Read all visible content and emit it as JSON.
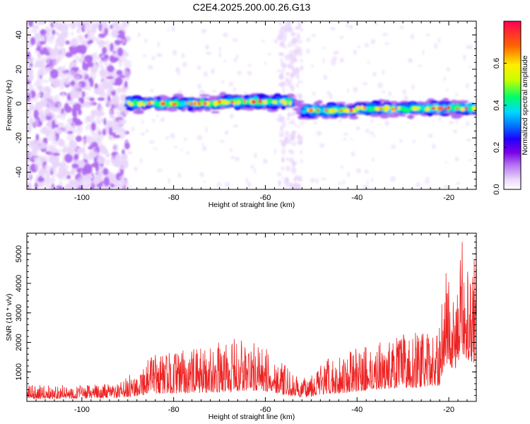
{
  "title": "C2E4.2025.200.00.26.G13",
  "colors": {
    "snr_line": "#ee2222",
    "colormap": [
      "#ffffff",
      "#e9d6fb",
      "#b06cf0",
      "#7a00e6",
      "#2200ff",
      "#0077ff",
      "#00d8ff",
      "#00ff66",
      "#c8ff00",
      "#ffee00",
      "#ff6600",
      "#ff0055"
    ]
  },
  "chart_data": [
    {
      "type": "heatmap",
      "name": "spectrogram",
      "xlabel": "Height of straight line (km)",
      "ylabel": "Frequency (Hz)",
      "xlim": [
        -112,
        -14
      ],
      "ylim": [
        -50,
        48
      ],
      "x_ticks": [
        -100,
        -80,
        -60,
        -40,
        -20
      ],
      "y_ticks": [
        -40,
        -20,
        0,
        20,
        40
      ],
      "colorbar": {
        "label": "Normalized spectral amplitude",
        "range": [
          0,
          0.8
        ],
        "ticks": [
          0.0,
          0.2,
          0.4,
          0.6
        ]
      },
      "features": {
        "noise_region_x": [
          -112,
          -90
        ],
        "signal_band_center_hz": 0,
        "signal_band_halfwidth_hz": 5,
        "signal_band_x": [
          -90,
          -14
        ],
        "band_gap_x": -53,
        "band_shift_hz_after_gap": -4,
        "vertical_noise_columns_x": [
          -57,
          -52
        ],
        "peak_amplitude": 0.78
      }
    },
    {
      "type": "line",
      "name": "snr",
      "xlabel": "Height of straight line (km)",
      "ylabel": "SNR (10 * v/v)",
      "xlim": [
        -112,
        -14
      ],
      "ylim": [
        0,
        5700
      ],
      "x_ticks": [
        -100,
        -80,
        -60,
        -40,
        -20
      ],
      "y_ticks": [
        1000,
        2000,
        3000,
        4000,
        5000
      ],
      "envelope": {
        "x": [
          -112,
          -100,
          -92,
          -88,
          -85,
          -80,
          -75,
          -70,
          -65,
          -61,
          -58,
          -55,
          -52,
          -50,
          -47,
          -44,
          -40,
          -36,
          -33,
          -30,
          -27,
          -24,
          -22,
          -21,
          -20,
          -19,
          -18,
          -17,
          -16,
          -15,
          -14
        ],
        "base": [
          200,
          220,
          250,
          400,
          550,
          600,
          620,
          700,
          750,
          800,
          650,
          420,
          280,
          380,
          500,
          600,
          750,
          900,
          950,
          1000,
          1050,
          1150,
          1200,
          2600,
          3000,
          2200,
          2800,
          3600,
          3200,
          3000,
          2800
        ],
        "peak": [
          550,
          560,
          600,
          1100,
          1600,
          1700,
          1800,
          2000,
          2200,
          1900,
          1600,
          1100,
          700,
          1100,
          1400,
          1600,
          1800,
          2000,
          2100,
          2300,
          2400,
          2300,
          2500,
          4800,
          4300,
          3400,
          3900,
          5700,
          5600,
          5300,
          4800
        ]
      }
    }
  ]
}
